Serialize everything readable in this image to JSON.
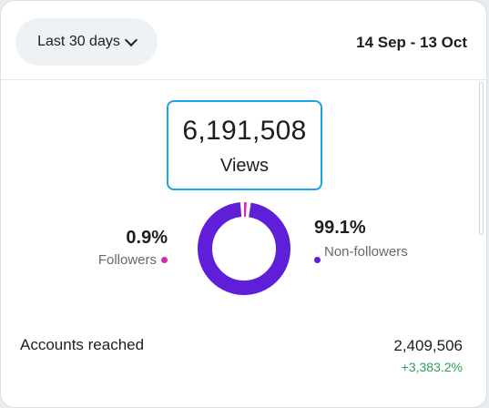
{
  "header": {
    "range_label": "Last 30 days",
    "date_range": "14 Sep - 13 Oct"
  },
  "views": {
    "value": "6,191,508",
    "label": "Views"
  },
  "breakdown": {
    "followers": {
      "percent": "0.9%",
      "label": "Followers",
      "color": "#d22ab0",
      "share": 0.009
    },
    "non_followers": {
      "percent": "99.1%",
      "label": "Non-followers",
      "color": "#5f1ed8",
      "share": 0.991
    }
  },
  "metrics": [
    {
      "label": "Accounts reached",
      "value": "2,409,506",
      "change": "+3,383.2%"
    }
  ],
  "colors": {
    "accent_border": "#1aa3e8",
    "positive": "#2e9e58"
  }
}
